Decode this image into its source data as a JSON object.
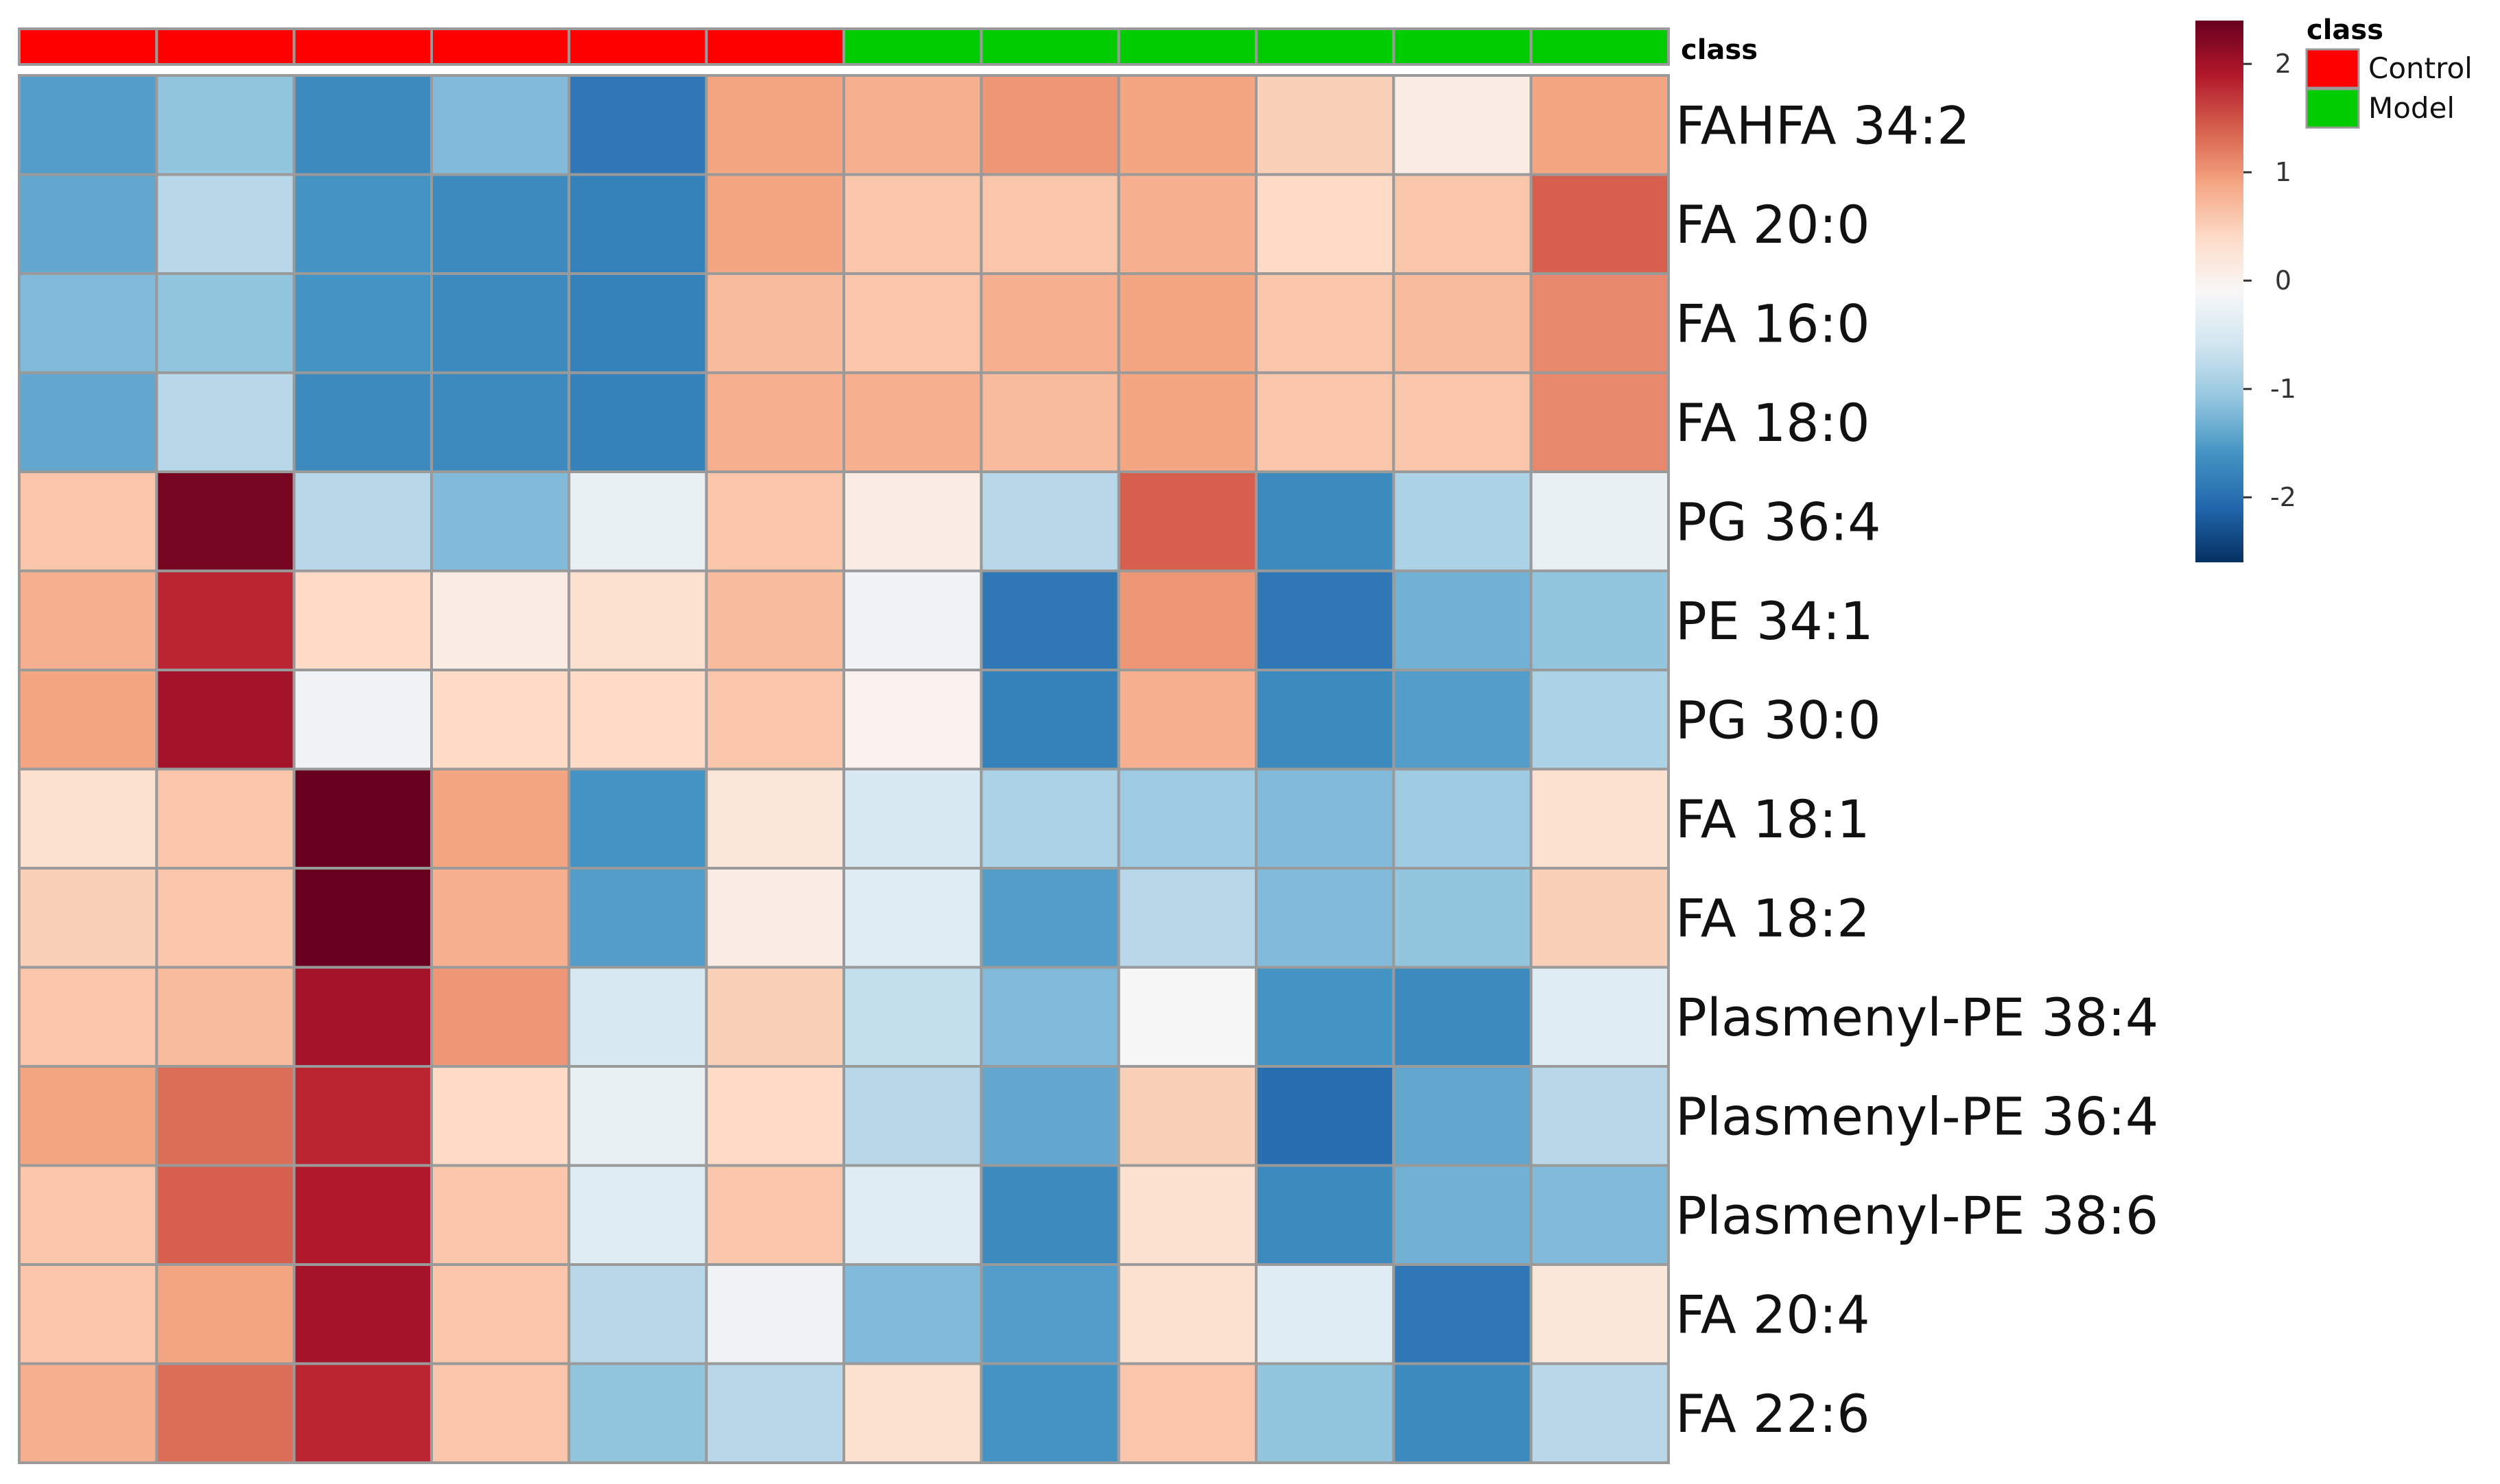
{
  "chart_data": {
    "type": "heatmap",
    "annotation_title": "class",
    "row_labels": [
      "FAHFA 34:2",
      "FA 20:0",
      "FA 16:0",
      "FA 18:0",
      "PG 36:4",
      "PE 34:1",
      "PG 30:0",
      "FA 18:1",
      "FA 18:2",
      "Plasmenyl-PE 38:4",
      "Plasmenyl-PE 36:4",
      "Plasmenyl-PE 38:6",
      "FA 20:4",
      "FA 22:6"
    ],
    "column_classes": [
      "Control",
      "Control",
      "Control",
      "Control",
      "Control",
      "Control",
      "Model",
      "Model",
      "Model",
      "Model",
      "Model",
      "Model"
    ],
    "values": [
      [
        -1.5,
        -1.1,
        -1.7,
        -1.2,
        -1.9,
        0.9,
        0.8,
        1.0,
        0.9,
        0.5,
        0.1,
        0.9
      ],
      [
        -1.4,
        -0.8,
        -1.6,
        -1.7,
        -1.8,
        0.9,
        0.6,
        0.6,
        0.8,
        0.4,
        0.6,
        1.4
      ],
      [
        -1.2,
        -1.1,
        -1.6,
        -1.7,
        -1.8,
        0.7,
        0.6,
        0.8,
        0.9,
        0.6,
        0.7,
        1.1
      ],
      [
        -1.4,
        -0.8,
        -1.7,
        -1.7,
        -1.8,
        0.8,
        0.8,
        0.7,
        0.9,
        0.6,
        0.6,
        1.1
      ],
      [
        0.6,
        2.3,
        -0.8,
        -1.2,
        -0.3,
        0.6,
        0.1,
        -0.8,
        1.4,
        -1.7,
        -0.9,
        -0.3
      ],
      [
        0.8,
        1.8,
        0.4,
        0.1,
        0.3,
        0.7,
        -0.2,
        -1.9,
        1.0,
        -1.9,
        -1.3,
        -1.1
      ],
      [
        0.9,
        2.0,
        -0.2,
        0.4,
        0.4,
        0.6,
        0.0,
        -1.8,
        0.8,
        -1.7,
        -1.5,
        -0.9
      ],
      [
        0.3,
        0.6,
        2.5,
        0.9,
        -1.6,
        0.2,
        -0.5,
        -0.9,
        -1.0,
        -1.2,
        -1.0,
        0.3
      ],
      [
        0.5,
        0.6,
        2.5,
        0.8,
        -1.5,
        0.1,
        -0.4,
        -1.5,
        -0.8,
        -1.2,
        -1.1,
        0.5
      ],
      [
        0.6,
        0.7,
        2.0,
        1.0,
        -0.5,
        0.5,
        -0.7,
        -1.2,
        -0.1,
        -1.6,
        -1.7,
        -0.4
      ],
      [
        0.9,
        1.3,
        1.8,
        0.4,
        -0.3,
        0.4,
        -0.8,
        -1.4,
        0.5,
        -2.0,
        -1.4,
        -0.8
      ],
      [
        0.6,
        1.4,
        1.9,
        0.6,
        -0.4,
        0.6,
        -0.4,
        -1.7,
        0.3,
        -1.7,
        -1.3,
        -1.2
      ],
      [
        0.6,
        0.9,
        2.0,
        0.6,
        -0.8,
        -0.2,
        -1.2,
        -1.5,
        0.3,
        -0.4,
        -1.9,
        0.2
      ],
      [
        0.8,
        1.3,
        1.8,
        0.6,
        -1.1,
        -0.8,
        0.3,
        -1.6,
        0.6,
        -1.1,
        -1.7,
        -0.8
      ]
    ],
    "colorbar": {
      "min": -2.6,
      "max": 2.4,
      "ticks": [
        2,
        1,
        0,
        -1,
        -2
      ],
      "tick_labels": [
        "2",
        "1",
        "0",
        "-1",
        "-2"
      ],
      "colors": [
        "#053061",
        "#2166ac",
        "#4393c3",
        "#92c5de",
        "#d1e5f0",
        "#f7f7f7",
        "#fddbc7",
        "#f4a582",
        "#d6604d",
        "#b2182b",
        "#67001f"
      ]
    },
    "legend": {
      "title": "class",
      "position": "top-right",
      "items": [
        {
          "label": "Control",
          "color": "#ff0000"
        },
        {
          "label": "Model",
          "color": "#00cc00"
        }
      ]
    }
  }
}
